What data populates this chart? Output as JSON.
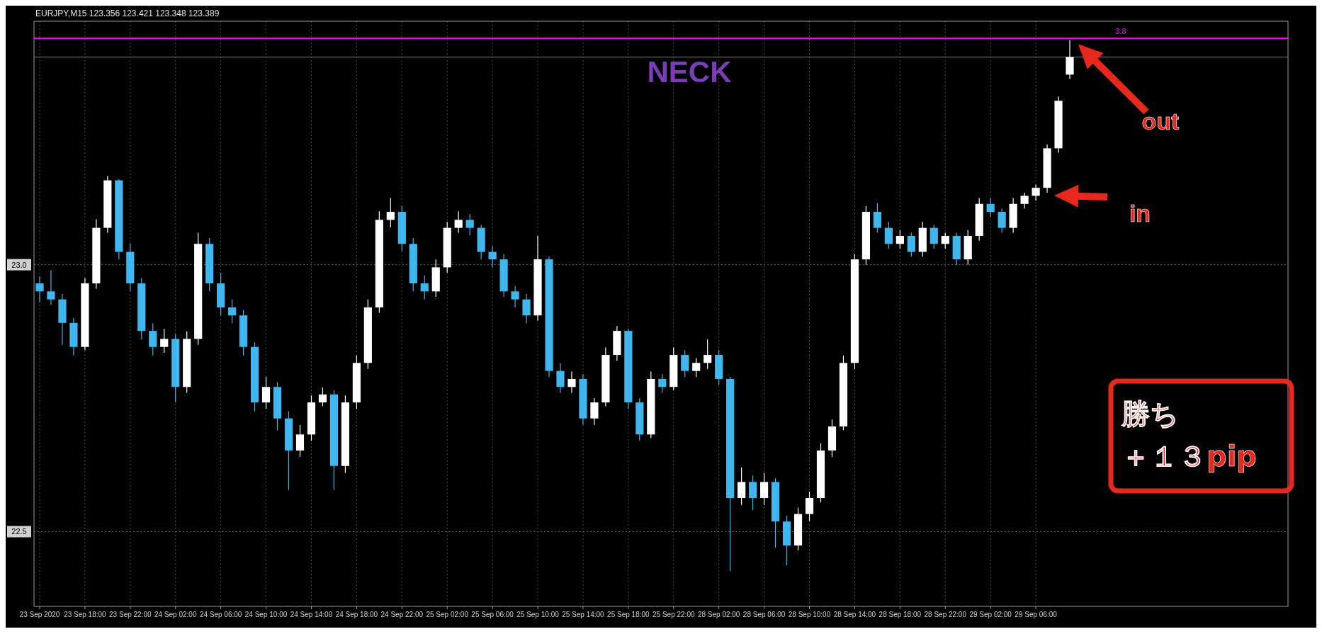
{
  "chart_data": {
    "type": "candlestick",
    "title": "EURJPY,M15  123.356 123.421 123.348 123.389",
    "categories": [
      "23 Sep 2020",
      null,
      null,
      null,
      "23 Sep 18:00",
      null,
      null,
      null,
      "23 Sep 22:00",
      null,
      null,
      null,
      "24 Sep 02:00",
      null,
      null,
      null,
      "24 Sep 06:00",
      null,
      null,
      null,
      "24 Sep 10:00",
      null,
      null,
      null,
      "24 Sep 14:00",
      null,
      null,
      null,
      "24 Sep 18:00",
      null,
      null,
      null,
      "24 Sep 22:00",
      null,
      null,
      null,
      "25 Sep 02:00",
      null,
      null,
      null,
      "25 Sep 06:00",
      null,
      null,
      null,
      "25 Sep 10:00",
      null,
      null,
      null,
      "25 Sep 14:00",
      null,
      null,
      null,
      "25 Sep 18:00",
      null,
      null,
      null,
      "25 Sep 22:00",
      null,
      null,
      null,
      "28 Sep 02:00",
      null,
      null,
      null,
      "28 Sep 06:00",
      null,
      null,
      null,
      "28 Sep 10:00",
      null,
      null,
      null,
      "28 Sep 14:00",
      null,
      null,
      null,
      "28 Sep 18:00",
      null,
      null,
      null,
      "28 Sep 22:00",
      null,
      null,
      null,
      "29 Sep 02:00",
      null,
      null,
      null,
      "29 Sep 06:00",
      null,
      null,
      null
    ],
    "ohlc": [
      [
        22.965,
        22.978,
        22.93,
        22.95
      ],
      [
        22.95,
        22.99,
        22.925,
        22.935
      ],
      [
        22.935,
        22.945,
        22.85,
        22.891
      ],
      [
        22.891,
        22.9,
        22.83,
        22.846
      ],
      [
        22.846,
        22.975,
        22.84,
        22.965
      ],
      [
        22.965,
        23.085,
        22.955,
        23.069
      ],
      [
        23.069,
        23.166,
        23.06,
        23.158
      ],
      [
        23.158,
        23.16,
        23.01,
        23.024
      ],
      [
        23.024,
        23.04,
        22.95,
        22.965
      ],
      [
        22.965,
        22.975,
        22.86,
        22.876
      ],
      [
        22.876,
        22.89,
        22.83,
        22.846
      ],
      [
        22.846,
        22.88,
        22.835,
        22.861
      ],
      [
        22.861,
        22.87,
        22.742,
        22.771
      ],
      [
        22.771,
        22.875,
        22.76,
        22.861
      ],
      [
        22.861,
        23.06,
        22.85,
        23.039
      ],
      [
        23.039,
        23.05,
        22.95,
        22.965
      ],
      [
        22.965,
        22.985,
        22.905,
        22.92
      ],
      [
        22.92,
        22.935,
        22.89,
        22.905
      ],
      [
        22.905,
        22.915,
        22.83,
        22.846
      ],
      [
        22.846,
        22.855,
        22.725,
        22.742
      ],
      [
        22.742,
        22.79,
        22.73,
        22.771
      ],
      [
        22.771,
        22.78,
        22.69,
        22.712
      ],
      [
        22.712,
        22.725,
        22.578,
        22.652
      ],
      [
        22.652,
        22.7,
        22.64,
        22.682
      ],
      [
        22.682,
        22.755,
        22.67,
        22.742
      ],
      [
        22.742,
        22.77,
        22.735,
        22.757
      ],
      [
        22.757,
        22.765,
        22.578,
        22.623
      ],
      [
        22.623,
        22.755,
        22.61,
        22.742
      ],
      [
        22.742,
        22.83,
        22.73,
        22.816
      ],
      [
        22.816,
        22.935,
        22.805,
        22.92
      ],
      [
        22.92,
        23.1,
        22.91,
        23.084
      ],
      [
        23.084,
        23.125,
        23.07,
        23.099
      ],
      [
        23.099,
        23.11,
        23.025,
        23.039
      ],
      [
        23.039,
        23.05,
        22.95,
        22.965
      ],
      [
        22.965,
        22.98,
        22.935,
        22.95
      ],
      [
        22.95,
        23.01,
        22.94,
        22.995
      ],
      [
        22.995,
        23.08,
        22.985,
        23.069
      ],
      [
        23.069,
        23.1,
        23.06,
        23.084
      ],
      [
        23.084,
        23.095,
        23.055,
        23.069
      ],
      [
        23.069,
        23.075,
        23.01,
        23.024
      ],
      [
        23.024,
        23.035,
        22.995,
        23.01
      ],
      [
        23.01,
        23.02,
        22.94,
        22.95
      ],
      [
        22.95,
        22.96,
        22.92,
        22.935
      ],
      [
        22.935,
        22.945,
        22.89,
        22.905
      ],
      [
        22.905,
        23.054,
        22.895,
        23.01
      ],
      [
        23.01,
        23.015,
        22.79,
        22.801
      ],
      [
        22.801,
        22.815,
        22.76,
        22.771
      ],
      [
        22.771,
        22.8,
        22.76,
        22.786
      ],
      [
        22.786,
        22.795,
        22.7,
        22.712
      ],
      [
        22.712,
        22.75,
        22.7,
        22.742
      ],
      [
        22.742,
        22.845,
        22.735,
        22.831
      ],
      [
        22.831,
        22.885,
        22.82,
        22.876
      ],
      [
        22.876,
        22.88,
        22.73,
        22.742
      ],
      [
        22.742,
        22.75,
        22.67,
        22.682
      ],
      [
        22.682,
        22.8,
        22.675,
        22.786
      ],
      [
        22.786,
        22.795,
        22.76,
        22.771
      ],
      [
        22.771,
        22.845,
        22.765,
        22.831
      ],
      [
        22.831,
        22.84,
        22.79,
        22.801
      ],
      [
        22.801,
        22.825,
        22.79,
        22.816
      ],
      [
        22.816,
        22.86,
        22.805,
        22.831
      ],
      [
        22.831,
        22.84,
        22.775,
        22.786
      ],
      [
        22.786,
        22.79,
        22.426,
        22.563
      ],
      [
        22.563,
        22.62,
        22.55,
        22.593
      ],
      [
        22.593,
        22.605,
        22.54,
        22.563
      ],
      [
        22.563,
        22.61,
        22.55,
        22.593
      ],
      [
        22.593,
        22.6,
        22.47,
        22.519
      ],
      [
        22.519,
        22.53,
        22.437,
        22.474
      ],
      [
        22.474,
        22.545,
        22.465,
        22.533
      ],
      [
        22.533,
        22.575,
        22.52,
        22.563
      ],
      [
        22.563,
        22.665,
        22.555,
        22.652
      ],
      [
        22.652,
        22.71,
        22.64,
        22.697
      ],
      [
        22.697,
        22.83,
        22.69,
        22.816
      ],
      [
        22.816,
        23.02,
        22.805,
        23.01
      ],
      [
        23.01,
        23.11,
        23.0,
        23.099
      ],
      [
        23.099,
        23.115,
        23.06,
        23.069
      ],
      [
        23.069,
        23.08,
        23.03,
        23.039
      ],
      [
        23.039,
        23.065,
        23.03,
        23.054
      ],
      [
        23.054,
        23.06,
        23.015,
        23.024
      ],
      [
        23.024,
        23.08,
        23.015,
        23.069
      ],
      [
        23.069,
        23.075,
        23.03,
        23.039
      ],
      [
        23.039,
        23.06,
        23.03,
        23.054
      ],
      [
        23.054,
        23.06,
        23.0,
        23.01
      ],
      [
        23.01,
        23.065,
        23.0,
        23.054
      ],
      [
        23.054,
        23.125,
        23.045,
        23.114
      ],
      [
        23.114,
        23.125,
        23.09,
        23.099
      ],
      [
        23.099,
        23.105,
        23.06,
        23.069
      ],
      [
        23.069,
        23.125,
        23.06,
        23.114
      ],
      [
        23.114,
        23.135,
        23.105,
        23.129
      ],
      [
        23.129,
        23.15,
        23.12,
        23.144
      ],
      [
        23.144,
        23.225,
        23.135,
        23.218
      ],
      [
        23.218,
        23.315,
        23.21,
        23.307
      ],
      [
        23.356,
        23.421,
        23.348,
        23.389
      ]
    ],
    "ylim": [
      22.36,
      23.456
    ],
    "yticks": [
      {
        "value": 23.0,
        "label": "23.0"
      },
      {
        "value": 22.5,
        "label": "22.5"
      }
    ],
    "grid": true,
    "ref_lines": [
      {
        "axis": "y",
        "value": 23.424,
        "color": "#ff00ff"
      },
      {
        "axis": "y",
        "value": 23.389,
        "color": "#808080"
      }
    ],
    "annotations": [
      "NECK",
      "out",
      "in",
      "勝ち",
      "＋１３pip",
      "3.8"
    ]
  }
}
